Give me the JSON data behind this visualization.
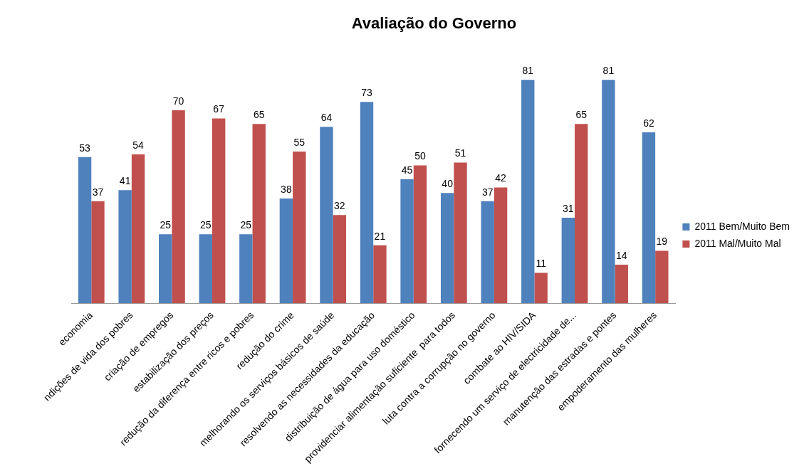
{
  "chart_data": {
    "type": "bar",
    "title": "Avaliação do Governo",
    "categories": [
      "economia",
      "ndições de vida dos pobres",
      "criação de empregos",
      "estabilização dos preços",
      "redução da diferença entre ricos e pobres",
      "redução do crime",
      "melhorando os serviços básicos de saúde",
      "resolvendo as necessidades da educação",
      "distribuição de água para uso doméstico",
      "providenciar alimentação suficiente  para todos",
      "luta contra a corrupção no governo",
      "combate ao HIV/SIDA",
      "fornecendo um serviço de electricidade de...",
      "manutenção das estradas e pontes",
      "empoderamento das mulheres"
    ],
    "series": [
      {
        "name": "2011 Bem/Muito Bem",
        "color": "#4f81bd",
        "values": [
          53,
          41,
          25,
          25,
          25,
          38,
          64,
          73,
          45,
          40,
          37,
          81,
          31,
          81,
          62
        ]
      },
      {
        "name": "2011 Mal/Muito Mal",
        "color": "#c0504d",
        "values": [
          37,
          54,
          70,
          67,
          65,
          55,
          32,
          21,
          50,
          51,
          42,
          11,
          65,
          14,
          19
        ]
      }
    ],
    "data_labels": true,
    "legend": "right",
    "grid": false,
    "tick_labels": "x"
  }
}
